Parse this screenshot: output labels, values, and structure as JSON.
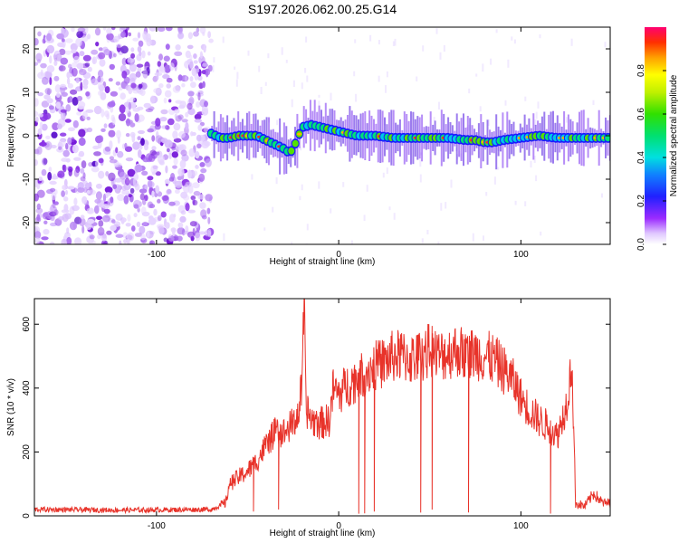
{
  "chart_data": [
    {
      "type": "heatmap",
      "title": "S197.2026.062.00.25.G14",
      "xlabel": "Height of straight line (km)",
      "ylabel": "Frequency (Hz)",
      "xlim": [
        -167,
        149
      ],
      "ylim": [
        -25,
        25
      ],
      "xticks": [
        -100,
        0,
        100
      ],
      "yticks": [
        -20,
        -10,
        0,
        10,
        20
      ],
      "noise_region_x": [
        -167,
        -70
      ],
      "ridge": {
        "x": [
          -70,
          -65,
          -60,
          -55,
          -50,
          -45,
          -40,
          -35,
          -30,
          -27,
          -25,
          -22,
          -20,
          -15,
          -10,
          -5,
          0,
          5,
          10,
          20,
          30,
          40,
          50,
          60,
          70,
          75,
          80,
          85,
          90,
          100,
          110,
          120,
          130,
          140,
          149
        ],
        "frequency_hz": [
          0.5,
          -0.5,
          -0.5,
          0,
          0,
          0,
          -1,
          -2,
          -3,
          -4,
          -3,
          0,
          2,
          2.5,
          2,
          1.5,
          1,
          0.5,
          0,
          0,
          -0.5,
          -0.5,
          -0.5,
          -0.5,
          -1,
          -1,
          -1.5,
          -1.5,
          -1,
          -0.5,
          0,
          -0.5,
          -0.5,
          -0.5,
          -0.5
        ]
      },
      "colorbar": {
        "label": "Normalized spectral amplitude",
        "range": [
          0,
          1
        ],
        "ticks": [
          "0.0",
          "0.2",
          "0.4",
          "0.6",
          "0.8"
        ]
      }
    },
    {
      "type": "line",
      "xlabel": "Height of straight line (km)",
      "ylabel": "SNR (10 * v/v)",
      "xlim": [
        -167,
        149
      ],
      "ylim": [
        0,
        680
      ],
      "xticks": [
        -100,
        0,
        100
      ],
      "yticks": [
        0,
        200,
        400,
        600
      ],
      "color": "#e8332a",
      "series": [
        {
          "name": "SNR",
          "x": [
            -167,
            -120,
            -70,
            -62,
            -60,
            -55,
            -50,
            -45,
            -42,
            -40,
            -35,
            -30,
            -25,
            -22,
            -20,
            -19,
            -18,
            -15,
            -10,
            -5,
            -3,
            0,
            5,
            10,
            15,
            20,
            25,
            30,
            35,
            40,
            45,
            50,
            55,
            60,
            65,
            70,
            75,
            80,
            85,
            90,
            95,
            100,
            105,
            110,
            115,
            120,
            125,
            128,
            130,
            135,
            140,
            145,
            149
          ],
          "y": [
            20,
            18,
            20,
            40,
            100,
            120,
            140,
            170,
            200,
            220,
            260,
            260,
            290,
            320,
            420,
            680,
            340,
            300,
            290,
            300,
            400,
            380,
            410,
            430,
            450,
            470,
            480,
            500,
            500,
            490,
            500,
            520,
            500,
            510,
            520,
            500,
            510,
            500,
            490,
            460,
            430,
            370,
            330,
            300,
            280,
            250,
            350,
            480,
            40,
            30,
            70,
            40,
            40
          ]
        }
      ]
    }
  ]
}
